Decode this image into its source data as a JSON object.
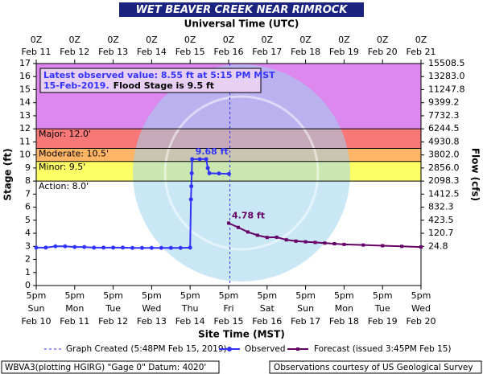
{
  "chart_data": {
    "type": "line",
    "title": "WET BEAVER CREEK NEAR RIMROCK",
    "x2_label": "Universal Time (UTC)",
    "x_label": "Site Time (MST)",
    "y_label": "Stage (ft)",
    "y2_label": "Flow (cfs)",
    "xlim": [
      "Feb 10 17:00",
      "Feb 20 17:00"
    ],
    "xticks": [
      {
        "value": "Feb 10 17:00",
        "label": [
          "5pm",
          "Sun",
          "Feb 10"
        ]
      },
      {
        "value": "Feb 11 17:00",
        "label": [
          "5pm",
          "Mon",
          "Feb 11"
        ]
      },
      {
        "value": "Feb 12 17:00",
        "label": [
          "5pm",
          "Tue",
          "Feb 12"
        ]
      },
      {
        "value": "Feb 13 17:00",
        "label": [
          "5pm",
          "Wed",
          "Feb 13"
        ]
      },
      {
        "value": "Feb 14 17:00",
        "label": [
          "5pm",
          "Thu",
          "Feb 14"
        ]
      },
      {
        "value": "Feb 15 17:00",
        "label": [
          "5pm",
          "Fri",
          "Feb 15"
        ]
      },
      {
        "value": "Feb 16 17:00",
        "label": [
          "5pm",
          "Sat",
          "Feb 16"
        ]
      },
      {
        "value": "Feb 17 17:00",
        "label": [
          "5pm",
          "Sun",
          "Feb 17"
        ]
      },
      {
        "value": "Feb 18 17:00",
        "label": [
          "5pm",
          "Mon",
          "Feb 18"
        ]
      },
      {
        "value": "Feb 19 17:00",
        "label": [
          "5pm",
          "Tue",
          "Feb 19"
        ]
      },
      {
        "value": "Feb 20 17:00",
        "label": [
          "5pm",
          "Wed",
          "Feb 20"
        ]
      }
    ],
    "x2ticks": [
      {
        "value": "Feb 10 17:00",
        "label": [
          "0Z",
          "Feb 11"
        ]
      },
      {
        "value": "Feb 11 17:00",
        "label": [
          "0Z",
          "Feb 12"
        ]
      },
      {
        "value": "Feb 12 17:00",
        "label": [
          "0Z",
          "Feb 13"
        ]
      },
      {
        "value": "Feb 13 17:00",
        "label": [
          "0Z",
          "Feb 14"
        ]
      },
      {
        "value": "Feb 14 17:00",
        "label": [
          "0Z",
          "Feb 15"
        ]
      },
      {
        "value": "Feb 15 17:00",
        "label": [
          "0Z",
          "Feb 16"
        ]
      },
      {
        "value": "Feb 16 17:00",
        "label": [
          "0Z",
          "Feb 17"
        ]
      },
      {
        "value": "Feb 17 17:00",
        "label": [
          "0Z",
          "Feb 18"
        ]
      },
      {
        "value": "Feb 18 17:00",
        "label": [
          "0Z",
          "Feb 19"
        ]
      },
      {
        "value": "Feb 19 17:00",
        "label": [
          "0Z",
          "Feb 20"
        ]
      },
      {
        "value": "Feb 20 17:00",
        "label": [
          "0Z",
          "Feb 21"
        ]
      }
    ],
    "ylim": [
      0,
      17
    ],
    "yticks": [
      0,
      1,
      2,
      3,
      4,
      5,
      6,
      7,
      8,
      9,
      10,
      11,
      12,
      13,
      14,
      15,
      16,
      17
    ],
    "y2ticks": [
      {
        "value": 15508.5,
        "label": "15508.5",
        "stage": 17
      },
      {
        "value": 13283.0,
        "label": "13283.0",
        "stage": 16
      },
      {
        "value": 11247.8,
        "label": "11247.8",
        "stage": 15
      },
      {
        "value": 9399.2,
        "label": "9399.2",
        "stage": 14
      },
      {
        "value": 7732.3,
        "label": "7732.3",
        "stage": 13
      },
      {
        "value": 6244.5,
        "label": "6244.5",
        "stage": 12
      },
      {
        "value": 4930.8,
        "label": "4930.8",
        "stage": 11
      },
      {
        "value": 3802.0,
        "label": "3802.0",
        "stage": 10
      },
      {
        "value": 2856.0,
        "label": "2856.0",
        "stage": 9
      },
      {
        "value": 2098.3,
        "label": "2098.3",
        "stage": 8
      },
      {
        "value": 1412.5,
        "label": "1412.5",
        "stage": 7
      },
      {
        "value": 832.3,
        "label": "832.3",
        "stage": 6
      },
      {
        "value": 423.5,
        "label": "423.5",
        "stage": 5
      },
      {
        "value": 120.7,
        "label": "120.7",
        "stage": 4
      },
      {
        "value": 24.8,
        "label": "24.8",
        "stage": 3
      }
    ],
    "thresholds": [
      {
        "label": "Major: 12.0'",
        "value": 12,
        "color": "#dd88ee"
      },
      {
        "label": "Moderate: 10.5'",
        "value": 10.5,
        "color": "#f87878"
      },
      {
        "label": "Minor: 9.5'",
        "value": 9.5,
        "color": "#ffb466"
      },
      {
        "label": "Action: 8.0'",
        "value": 8,
        "color": "#ffff66"
      }
    ],
    "series": [
      {
        "name": "Observed",
        "color": "#3333ff",
        "marker": "circle",
        "x": [
          "Feb 10 17:00",
          "Feb 10 23:00",
          "Feb 11 05:00",
          "Feb 11 11:00",
          "Feb 11 17:00",
          "Feb 11 23:00",
          "Feb 12 05:00",
          "Feb 12 11:00",
          "Feb 12 17:00",
          "Feb 12 23:00",
          "Feb 13 05:00",
          "Feb 13 11:00",
          "Feb 13 17:00",
          "Feb 13 23:00",
          "Feb 14 05:00",
          "Feb 14 11:00",
          "Feb 14 17:00",
          "Feb 14 17:30",
          "Feb 14 17:45",
          "Feb 14 18:00",
          "Feb 14 18:15",
          "Feb 14 23:00",
          "Feb 15 03:00",
          "Feb 15 04:00",
          "Feb 15 05:00",
          "Feb 15 11:00",
          "Feb 15 17:15"
        ],
        "values": [
          2.9,
          2.9,
          3.0,
          3.0,
          2.95,
          2.95,
          2.9,
          2.9,
          2.9,
          2.9,
          2.88,
          2.88,
          2.88,
          2.88,
          2.88,
          2.88,
          2.9,
          6.6,
          7.6,
          8.6,
          9.68,
          9.68,
          9.68,
          9.0,
          8.6,
          8.58,
          8.55
        ]
      },
      {
        "name": "Forecast (issued 3:45PM Feb 15)",
        "color": "#660066",
        "marker": "square",
        "x": [
          "Feb 15 17:00",
          "Feb 15 23:00",
          "Feb 16 05:00",
          "Feb 16 11:00",
          "Feb 16 17:00",
          "Feb 16 23:00",
          "Feb 17 05:00",
          "Feb 17 11:00",
          "Feb 17 17:00",
          "Feb 17 23:00",
          "Feb 18 05:00",
          "Feb 18 11:00",
          "Feb 18 17:00",
          "Feb 19 05:00",
          "Feb 19 17:00",
          "Feb 20 05:00",
          "Feb 20 17:00"
        ],
        "values": [
          4.78,
          4.45,
          4.1,
          3.85,
          3.68,
          3.7,
          3.5,
          3.4,
          3.35,
          3.3,
          3.25,
          3.2,
          3.15,
          3.1,
          3.05,
          3.0,
          2.95
        ]
      }
    ],
    "annotations": [
      {
        "text": "9.68 ft",
        "x": "Feb 14 18:15",
        "y": 9.68,
        "color": "#3333ff"
      },
      {
        "text": "4.78 ft",
        "x": "Feb 15 17:00",
        "y": 4.78,
        "color": "#660066"
      }
    ],
    "graph_created": {
      "name": "Graph Created (5:48PM Feb 15, 2019)",
      "x": "Feb 15 17:48"
    },
    "latest": {
      "line1": "Latest observed value: 8.55 ft at 5:15 PM MST",
      "date": "15-Feb-2019.",
      "flood": "Flood Stage is 9.5 ft"
    },
    "footer": {
      "left": "WBVA3(plotting HGIRG) \"Gage 0\" Datum: 4020'",
      "right": "Observations courtesy of US Geological Survey"
    }
  }
}
